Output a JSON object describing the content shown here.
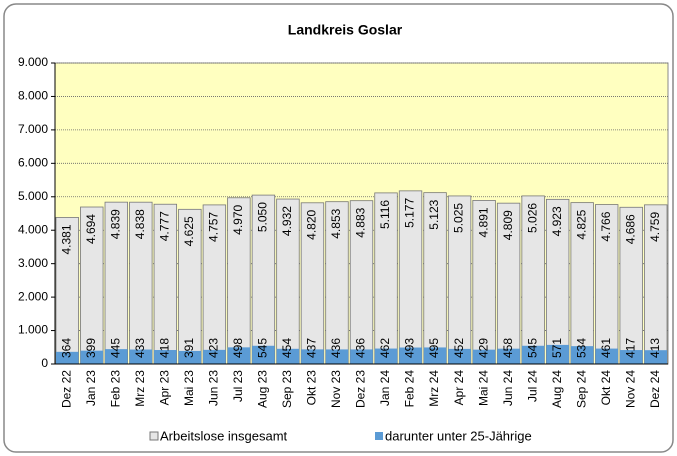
{
  "chart_data": {
    "type": "bar",
    "title": "Landkreis Goslar",
    "categories": [
      "Dez 22",
      "Jan 23",
      "Feb 23",
      "Mrz 23",
      "Apr 23",
      "Mai 23",
      "Jun 23",
      "Jul 23",
      "Aug 23",
      "Sep 23",
      "Okt 23",
      "Nov 23",
      "Dez 23",
      "Jan 24",
      "Feb 24",
      "Mrz 24",
      "Apr 24",
      "Mai 24",
      "Jun 24",
      "Jul 24",
      "Aug 24",
      "Sep 24",
      "Okt 24",
      "Nov 24",
      "Dez 24"
    ],
    "series": [
      {
        "name": "Arbeitslose insgesamt",
        "color": "#e6e6e6",
        "values": [
          4381,
          4694,
          4839,
          4838,
          4777,
          4625,
          4757,
          4970,
          5050,
          4932,
          4820,
          4853,
          4883,
          5116,
          5177,
          5123,
          5025,
          4891,
          4809,
          5026,
          4923,
          4825,
          4766,
          4686,
          4759
        ],
        "value_labels": [
          "4.381",
          "4.694",
          "4.839",
          "4.838",
          "4.777",
          "4.625",
          "4.757",
          "4.970",
          "5.050",
          "4.932",
          "4.820",
          "4.853",
          "4.883",
          "5.116",
          "5.177",
          "5.123",
          "5.025",
          "4.891",
          "4.809",
          "5.026",
          "4.923",
          "4.825",
          "4.766",
          "4.686",
          "4.759"
        ]
      },
      {
        "name": "darunter unter 25-Jährige",
        "color": "#5b9bd5",
        "values": [
          364,
          399,
          445,
          433,
          418,
          391,
          423,
          498,
          545,
          454,
          437,
          436,
          436,
          462,
          493,
          495,
          452,
          429,
          458,
          545,
          571,
          534,
          461,
          417,
          413
        ]
      }
    ],
    "ylim": [
      0,
      9000
    ],
    "yticks": [
      0,
      {
        "value": 1000,
        "label": "1.000"
      },
      {
        "value": 2000,
        "label": "2.000"
      },
      {
        "value": 3000,
        "label": "3.000"
      },
      {
        "value": 4000,
        "label": "4.000"
      },
      {
        "value": 5000,
        "label": "5.000"
      },
      {
        "value": 6000,
        "label": "6.000"
      },
      {
        "value": 7000,
        "label": "7.000"
      },
      {
        "value": 8000,
        "label": "8.000"
      },
      {
        "value": 9000,
        "label": "9.000"
      }
    ],
    "grid": true,
    "background": "#ffffc0"
  }
}
